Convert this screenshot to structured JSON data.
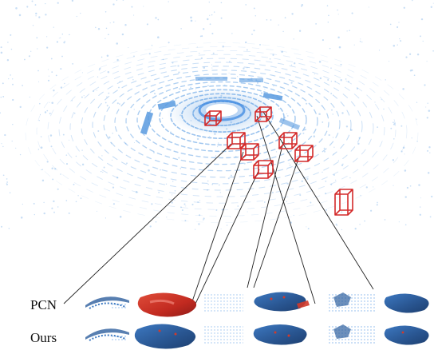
{
  "rows": {
    "pcn": "PCN",
    "ours": "Ours"
  },
  "colors": {
    "lidar": "#5a9be0",
    "box": "#d42a2a",
    "car_blue": "#2e5f9e",
    "car_red": "#d23a2a",
    "connector": "#222222"
  },
  "icons": [
    "lidar-point-cloud",
    "bounding-box",
    "partial-scan",
    "completed-car"
  ]
}
